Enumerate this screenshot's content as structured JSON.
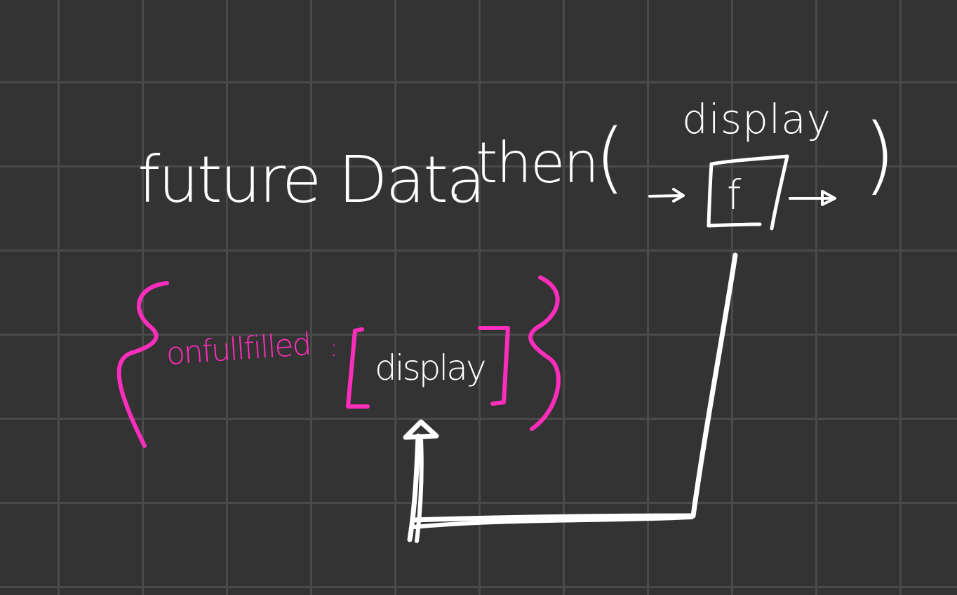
{
  "code": {
    "receiver": "future Data",
    "dot": ".",
    "method": "then",
    "open_paren": "(",
    "close_paren": ")",
    "callback_label": "display",
    "function_symbol": "f"
  },
  "registration": {
    "key": "onfullfilled",
    "colon": ":",
    "value": "display"
  },
  "colors": {
    "background": "#333333",
    "grid": "#4a4a4a",
    "ink": "#ffffff",
    "accent": "#ff2dbb"
  }
}
